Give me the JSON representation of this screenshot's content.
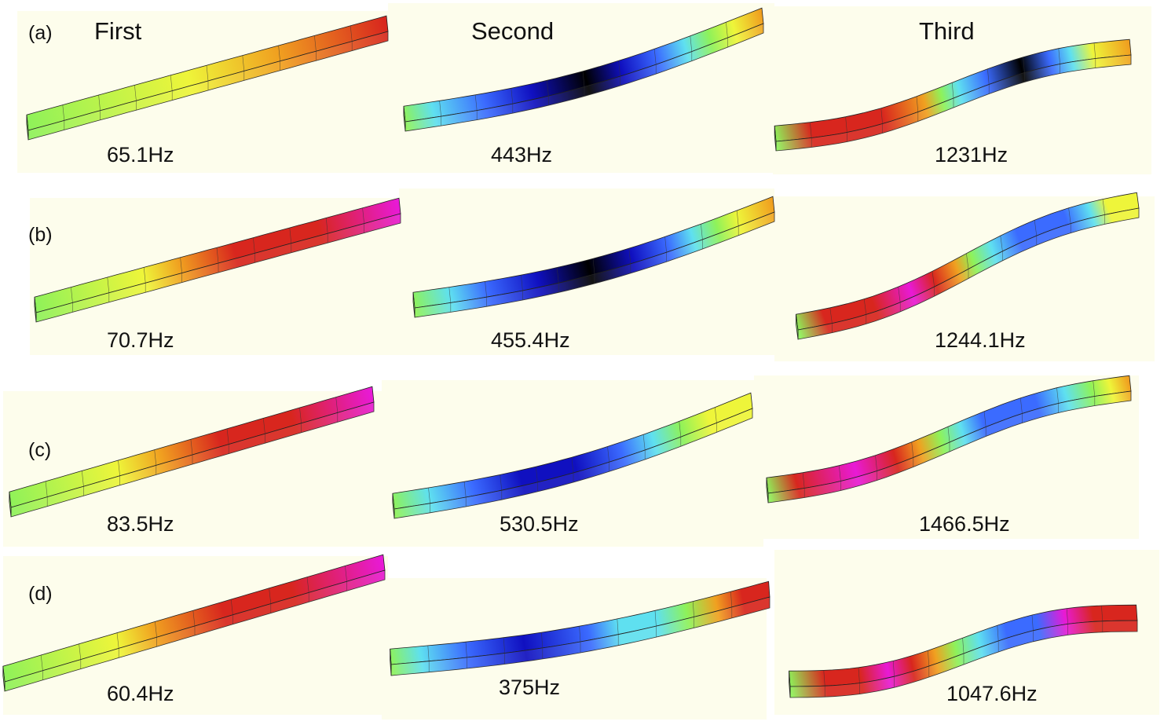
{
  "column_titles": [
    "First",
    "Second",
    "Third"
  ],
  "rows": [
    {
      "label": "(a)",
      "frequencies": [
        "65.1Hz",
        "443Hz",
        "1231Hz"
      ]
    },
    {
      "label": "(b)",
      "frequencies": [
        "70.7Hz",
        "455.4Hz",
        "1244.1Hz"
      ]
    },
    {
      "label": "(c)",
      "frequencies": [
        "83.5Hz",
        "530.5Hz",
        "1466.5Hz"
      ]
    },
    {
      "label": "(d)",
      "frequencies": [
        "60.4Hz",
        "375Hz",
        "1047.6Hz"
      ]
    }
  ],
  "colormap": [
    "#000000",
    "#1010c0",
    "#3b6bff",
    "#5fe0f0",
    "#8ef25a",
    "#eef53a",
    "#f0a020",
    "#d8261e",
    "#e81ad6"
  ]
}
